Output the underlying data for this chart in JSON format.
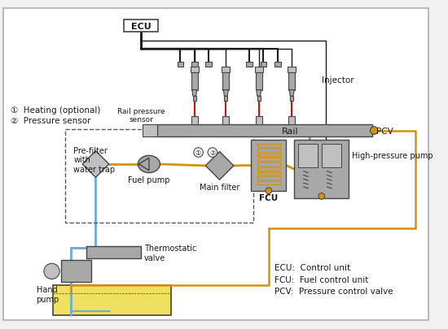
{
  "bg_color": "#f0f0f0",
  "white": "#ffffff",
  "labels": {
    "ecu": "ECU",
    "injector": "Injector",
    "rail_pressure_sensor": "Rail pressure\nsensor",
    "rail": "Rail",
    "pcv": "PCV",
    "high_pressure_pump": "High-pressure pump",
    "fcu": "FCU",
    "main_filter": "Main filter",
    "fuel_pump": "Fuel pump",
    "pre_filter": "Pre-filter\nwith\nwater trap",
    "thermostatic_valve": "Thermostatic\nvalve",
    "hand_pump": "Hand\npump",
    "legend1": "①  Heating (optional)",
    "legend2": "②  Pressure sensor",
    "abbrev1": "ECU:  Control unit",
    "abbrev2": "FCU:  Fuel control unit",
    "abbrev3": "PCV:  Pressure control valve"
  },
  "colors": {
    "black": "#1a1a1a",
    "dark_gray": "#444444",
    "silver": "#a8a8a8",
    "silver2": "#c0c0c0",
    "red": "#cc1111",
    "orange": "#d4920a",
    "light_blue": "#6baed6",
    "yellow_fill": "#f0e060",
    "white": "#ffffff",
    "dash_color": "#555555",
    "light_gray": "#bbbbbb"
  }
}
